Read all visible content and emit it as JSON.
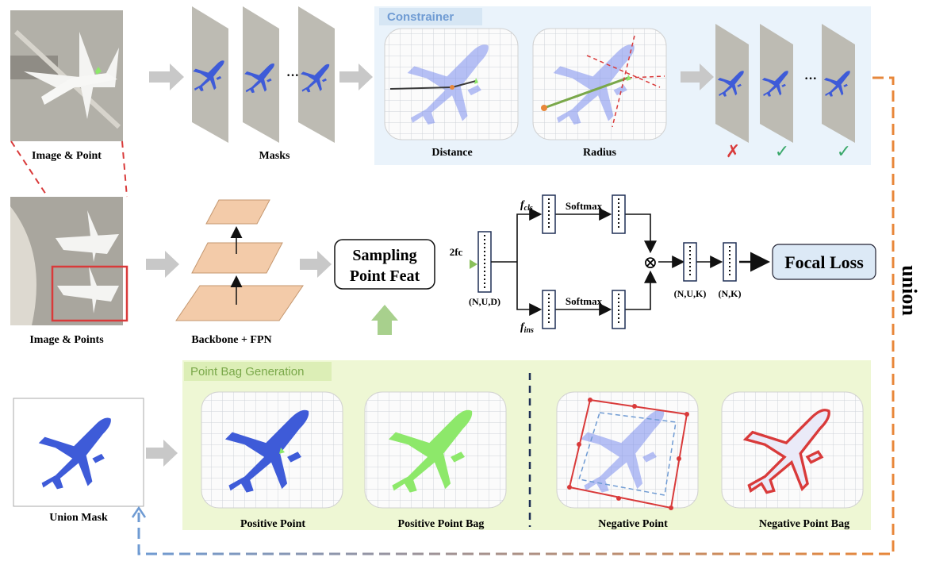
{
  "colors": {
    "accent_blue": "#3e5bd8",
    "positive_green": "#8de86a",
    "negative_red": "#d93a3a",
    "union_orange": "#e8873a",
    "union_blue": "#6f9bd3",
    "constrainer_bg": "#eaf3fb",
    "pointbag_bg": "#eef7d4",
    "fpn_orange": "#f3cba9"
  },
  "labels": {
    "image_point": "Image & Point",
    "masks": "Masks",
    "mask_ellipsis": "···",
    "constrainer_title": "Constrainer",
    "distance": "Distance",
    "radius": "Radius",
    "image_points": "Image & Points",
    "backbone_fpn": "Backbone + FPN",
    "sampling_line1": "Sampling",
    "sampling_line2": "Point Feat",
    "two_fc": "2fc",
    "nud": "(N,U,D)",
    "f_cls": "f",
    "f_cls_sub": "cls",
    "f_ins": "f",
    "f_ins_sub": "ins",
    "softmax_top": "Softmax",
    "softmax_bottom": "Softmax",
    "nuk": "(N,U,K)",
    "nk": "(N,K)",
    "focal_loss": "Focal Loss",
    "union": "union",
    "point_bag_title": "Point Bag Generation",
    "union_mask": "Union Mask",
    "positive_point": "Positive Point",
    "positive_point_bag": "Positive Point Bag",
    "negative_point": "Negative Point",
    "negative_point_bag": "Negative Point Bag"
  },
  "marks": {
    "cross_icon": "✗",
    "check_icon": "✓",
    "otimes_icon": "⊗"
  }
}
